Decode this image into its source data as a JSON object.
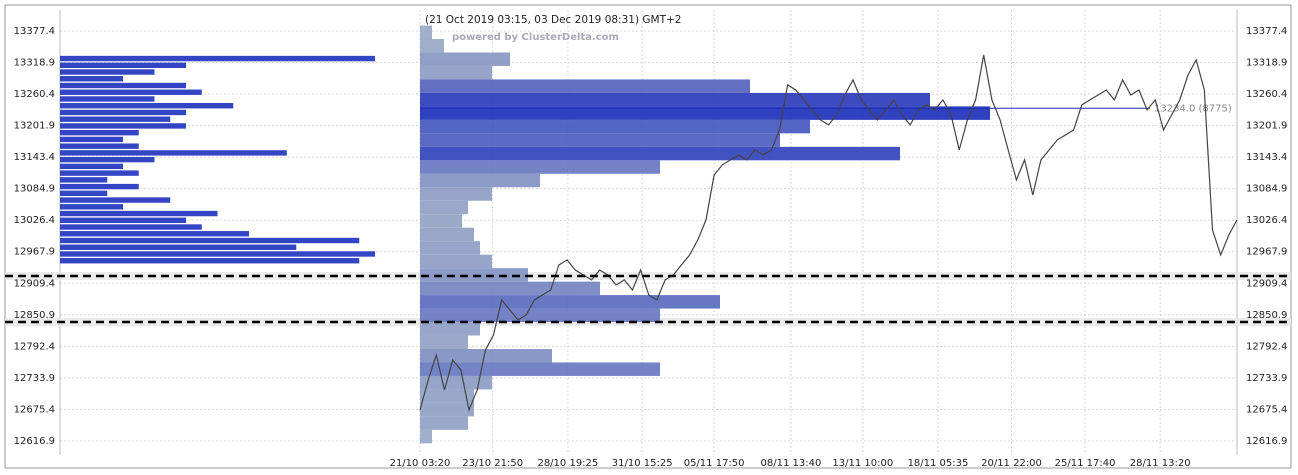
{
  "chart_data": {
    "type": "line",
    "title": "(21 Oct 2019 03:15, 03 Dec 2019 08:31) GMT+2",
    "subtitle": "powered by ClusterDelta.com",
    "annotation": "13234.0 (8775)",
    "annotation_value": 13234.0,
    "color": "#444444",
    "values": [
      12674.4,
      12730.1,
      12776.4,
      12711.5,
      12767.2,
      12748.6,
      12674.4,
      12711.5,
      12785.7,
      12813.5,
      12878.5,
      12859.9,
      12841.4,
      12850.6,
      12878.5,
      12887.7,
      12897.0,
      12943.4,
      12952.7,
      12934.1,
      12924.8,
      12915.6,
      12934.1,
      12924.8,
      12906.3,
      12915.6,
      12897.0,
      12934.1,
      12887.7,
      12878.5,
      12915.6,
      12924.8,
      12943.4,
      12961.9,
      12989.8,
      13026.9,
      13110.3,
      13128.9,
      13138.2,
      13147.4,
      13138.2,
      13156.7,
      13147.4,
      13156.7,
      13193.8,
      13277.3,
      13268.0,
      13249.5,
      13230.9,
      13212.4,
      13203.1,
      13221.6,
      13258.7,
      13286.6,
      13249.5,
      13230.9,
      13212.4,
      13230.9,
      13249.5,
      13221.6,
      13203.1,
      13230.9,
      13240.2,
      13230.9,
      13249.5,
      13221.6,
      13156.7,
      13212.4,
      13249.5,
      13332.9,
      13249.5,
      13212.4,
      13156.7,
      13101.1,
      13138.2,
      13073.2,
      13138.2,
      13156.7,
      13175.3,
      13184.5,
      13193.8,
      13240.2,
      13249.5,
      13258.7,
      13268.0,
      13249.5,
      13286.6,
      13258.7,
      13268.0,
      13230.9,
      13249.5,
      13193.8,
      13221.6,
      13249.5,
      13295.8,
      13323.7,
      13268.0,
      13008.3,
      12961.9,
      12999.0,
      13026.9
    ],
    "xlim": [
      0,
      100
    ],
    "xticks": [
      {
        "value": 0,
        "label": "21/10 03:20"
      },
      {
        "value": 8.9,
        "label": "23/10 21:50"
      },
      {
        "value": 18.1,
        "label": "28/10 19:25"
      },
      {
        "value": 27.2,
        "label": "31/10 15:25"
      },
      {
        "value": 36.0,
        "label": "05/11 17:50"
      },
      {
        "value": 45.4,
        "label": "08/11 13:40"
      },
      {
        "value": 54.2,
        "label": "13/11 10:00"
      },
      {
        "value": 63.4,
        "label": "18/11 05:35"
      },
      {
        "value": 72.4,
        "label": "20/11 22:00"
      },
      {
        "value": 81.4,
        "label": "25/11 17:40"
      },
      {
        "value": 90.6,
        "label": "28/11 13:20"
      }
    ],
    "ylim": [
      12590.9,
      13416.3
    ],
    "yticks": [
      13377.4,
      13318.9,
      13260.4,
      13201.9,
      13143.4,
      13084.9,
      13026.4,
      12967.9,
      12909.4,
      12850.9,
      12792.4,
      12733.9,
      12675.4,
      12616.9
    ],
    "grid": true,
    "levels": [
      12922.9,
      12837.6
    ],
    "left_profile": {
      "color": "#3344c4",
      "levels": [
        12950,
        12962.5,
        12975,
        12987.5,
        13000,
        13012.5,
        13025,
        13037.5,
        13050,
        13062.5,
        13075,
        13087.5,
        13100,
        13112.5,
        13125,
        13137.5,
        13150,
        13162.5,
        13175,
        13187.5,
        13200,
        13212.5,
        13225,
        13237.5,
        13250,
        13262.5,
        13275,
        13287.5,
        13300,
        13312.5,
        13325
      ],
      "values": [
        95,
        100,
        75,
        95,
        60,
        45,
        40,
        50,
        20,
        35,
        15,
        25,
        15,
        25,
        20,
        30,
        72,
        25,
        20,
        25,
        40,
        35,
        40,
        55,
        30,
        45,
        40,
        20,
        30,
        40,
        100
      ]
    },
    "volume_profile": {
      "colors": [
        "#9aaac4",
        "#1a2cb8"
      ],
      "levels": [
        12625,
        12650,
        12675,
        12700,
        12725,
        12750,
        12775,
        12800,
        12825,
        12850,
        12875,
        12900,
        12925,
        12950,
        12975,
        13000,
        13025,
        13050,
        13075,
        13100,
        13125,
        13150,
        13175,
        13200,
        13225,
        13250,
        13275,
        13300,
        13325,
        13350,
        13375
      ],
      "values": [
        2,
        8,
        9,
        9,
        12,
        40,
        22,
        8,
        10,
        40,
        50,
        30,
        18,
        12,
        10,
        9,
        7,
        8,
        12,
        20,
        40,
        80,
        60,
        65,
        95,
        85,
        55,
        12,
        15,
        4,
        2
      ]
    }
  }
}
